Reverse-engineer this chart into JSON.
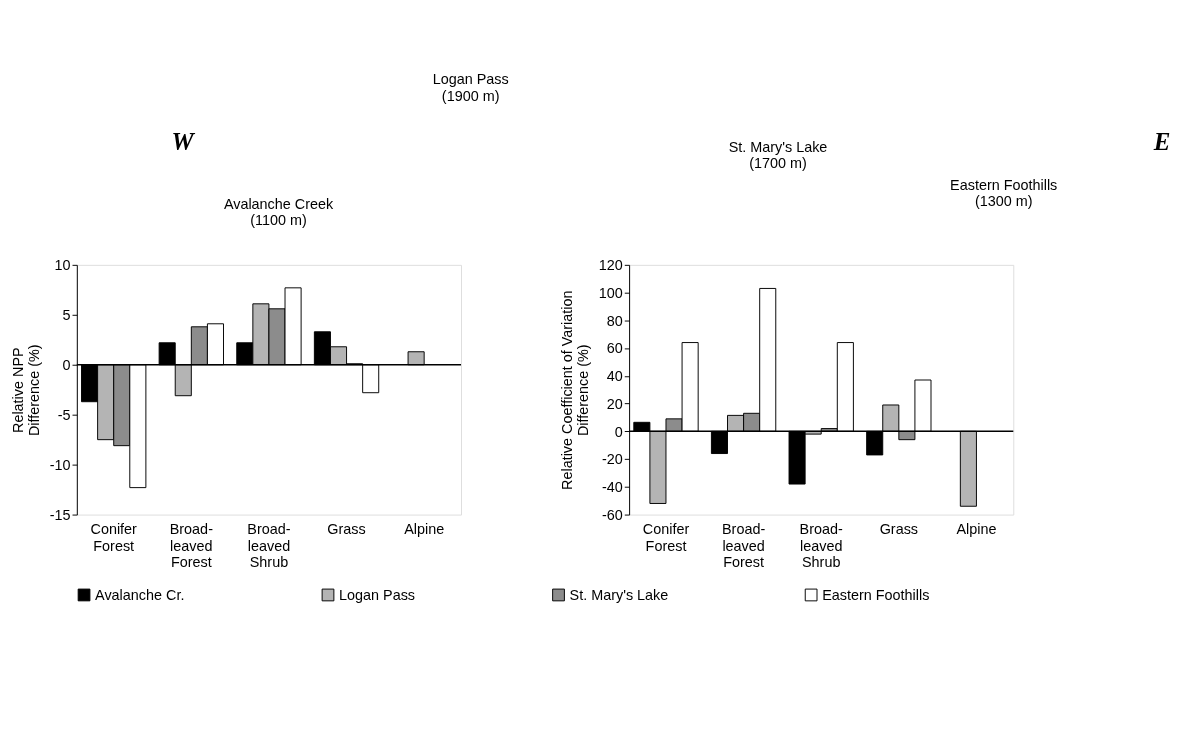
{
  "chart_data": [
    {
      "type": "other",
      "annotations": [
        "W",
        "Avalanche Creek\n(1100 m)",
        "Logan Pass\n(1900 m)",
        "St. Mary's Lake\n(1700 m)",
        "Eastern Foothills\n(1300 m)",
        "E"
      ]
    },
    {
      "type": "bar",
      "categories": [
        "Conifer\nForest",
        "Broad-\nleaved\nForest",
        "Broad-\nleaved\nShrub",
        "Grass",
        "Alpine"
      ],
      "ylabel": "Relative NPP\nDifference (%)",
      "ylim": [
        -15,
        10
      ],
      "yticks": [
        -15,
        -10,
        -5,
        0,
        5,
        10
      ],
      "grid": false,
      "legend": "bottom",
      "ref_lines": [
        {
          "axis": "y",
          "value": 0
        }
      ],
      "series": [
        {
          "name": "Avalanche Cr.",
          "color": "#000000",
          "values": [
            -3.7,
            2.2,
            2.2,
            3.3,
            null
          ]
        },
        {
          "name": "Logan Pass",
          "color": "#b4b4b4",
          "values": [
            -7.5,
            -3.1,
            6.1,
            1.8,
            1.3
          ]
        },
        {
          "name": "St. Mary's Lake",
          "color": "#8c8c8c",
          "values": [
            -8.1,
            3.8,
            5.6,
            0.1,
            null
          ]
        },
        {
          "name": "Eastern Foothills",
          "color": "#ffffff",
          "values": [
            -12.3,
            4.1,
            7.7,
            -2.8,
            null
          ]
        }
      ]
    },
    {
      "type": "bar",
      "categories": [
        "Conifer\nForest",
        "Broad-\nleaved\nForest",
        "Broad-\nleaved\nShrub",
        "Grass",
        "Alpine"
      ],
      "ylabel": "Relative Coefficient of Variation\nDifference (%)",
      "ylim": [
        -60,
        120
      ],
      "yticks": [
        -60,
        -40,
        -20,
        0,
        20,
        40,
        60,
        80,
        100,
        120
      ],
      "grid": false,
      "ref_lines": [
        {
          "axis": "y",
          "value": 0
        }
      ],
      "series": [
        {
          "color": "#000000",
          "values": [
            6.5,
            -16,
            -38,
            -17,
            null
          ]
        },
        {
          "color": "#b4b4b4",
          "values": [
            -52,
            11.5,
            -2,
            19,
            -54
          ]
        },
        {
          "color": "#8c8c8c",
          "values": [
            9,
            13,
            2,
            -6,
            null
          ]
        },
        {
          "color": "#ffffff",
          "values": [
            64,
            103,
            64,
            37,
            null
          ]
        }
      ]
    }
  ]
}
